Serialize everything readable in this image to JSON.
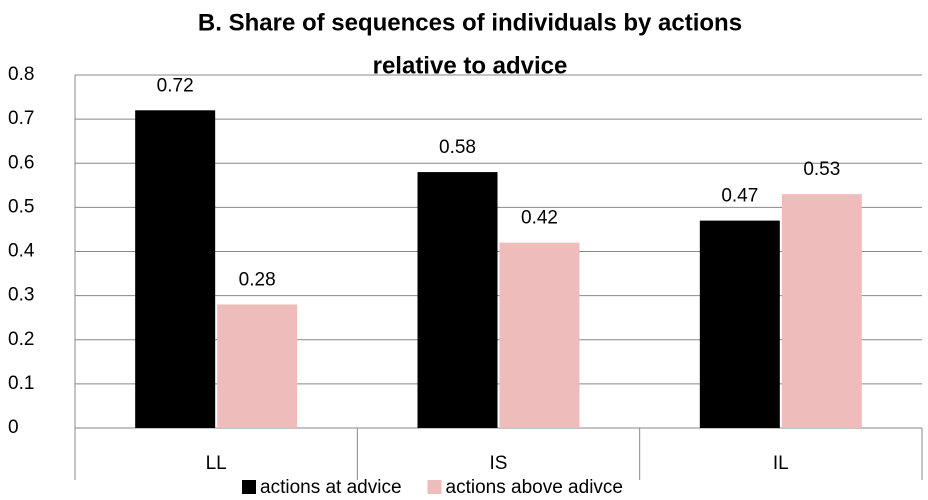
{
  "chart_data": {
    "type": "bar",
    "title": [
      "B. Share of sequences of individuals by actions",
      "relative to advice"
    ],
    "categories": [
      "LL",
      "IS",
      "IL"
    ],
    "series": [
      {
        "name": "actions at advice",
        "color": "#000000",
        "values": [
          0.72,
          0.58,
          0.47
        ]
      },
      {
        "name": "actions above adivce",
        "color": "#efbcbc",
        "values": [
          0.28,
          0.42,
          0.53
        ]
      }
    ],
    "ylim": [
      0,
      0.8
    ],
    "yticks": [
      0,
      0.1,
      0.2,
      0.3,
      0.4,
      0.5,
      0.6,
      0.7,
      0.8
    ],
    "grid": true,
    "legend": "bottom"
  }
}
